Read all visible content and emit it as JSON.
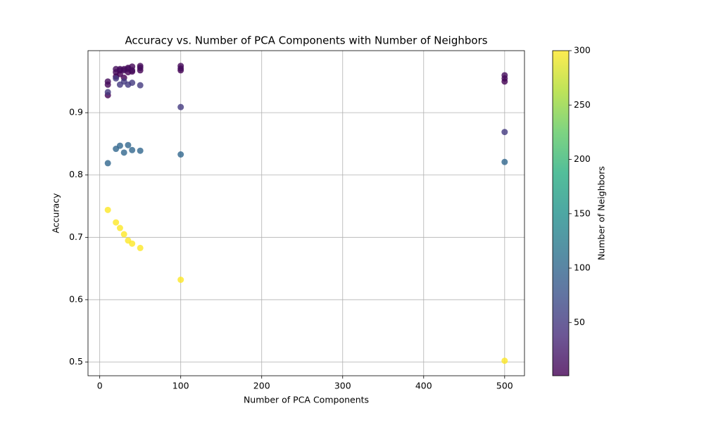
{
  "chart_data": {
    "type": "scatter",
    "title": "Accuracy vs. Number of PCA Components with Number of Neighbors",
    "xlabel": "Number of PCA Components",
    "ylabel": "Accuracy",
    "colorbar_label": "Number of Neighbors",
    "colormap": "viridis",
    "alpha": 0.8,
    "grid": true,
    "x": [
      10,
      20,
      25,
      30,
      35,
      40,
      50,
      100,
      500,
      10,
      20,
      25,
      30,
      35,
      40,
      50,
      100,
      500,
      10,
      20,
      25,
      30,
      35,
      40,
      50,
      100,
      500,
      10,
      20,
      25,
      30,
      35,
      40,
      50,
      100,
      500,
      10,
      20,
      25,
      30,
      35,
      40,
      50,
      100,
      500,
      10,
      20,
      25,
      30,
      35,
      40,
      50,
      100,
      500
    ],
    "y": [
      0.928,
      0.958,
      0.962,
      0.956,
      0.965,
      0.966,
      0.968,
      0.968,
      0.95,
      0.945,
      0.965,
      0.968,
      0.97,
      0.972,
      0.974,
      0.975,
      0.975,
      0.955,
      0.95,
      0.97,
      0.97,
      0.968,
      0.97,
      0.968,
      0.972,
      0.971,
      0.96,
      0.933,
      0.955,
      0.945,
      0.95,
      0.945,
      0.948,
      0.944,
      0.909,
      0.869,
      0.819,
      0.842,
      0.847,
      0.836,
      0.848,
      0.84,
      0.839,
      0.833,
      0.821,
      0.744,
      0.724,
      0.715,
      0.705,
      0.695,
      0.69,
      0.683,
      0.632,
      0.502
    ],
    "c": [
      1,
      1,
      1,
      1,
      1,
      1,
      1,
      1,
      1,
      5,
      5,
      5,
      5,
      5,
      5,
      5,
      5,
      5,
      10,
      10,
      10,
      10,
      10,
      10,
      10,
      10,
      10,
      50,
      50,
      50,
      50,
      50,
      50,
      50,
      50,
      50,
      100,
      100,
      100,
      100,
      100,
      100,
      100,
      100,
      100,
      300,
      300,
      300,
      300,
      300,
      300,
      300,
      300,
      300
    ],
    "xlim": [
      -14.5,
      524.5
    ],
    "xticks": [
      0,
      100,
      200,
      300,
      400,
      500
    ],
    "ylim": [
      0.478,
      0.9995
    ],
    "yticks": [
      0.5,
      0.6,
      0.7,
      0.8,
      0.9
    ],
    "clim": [
      1,
      300
    ],
    "cticks": [
      50,
      100,
      150,
      200,
      250,
      300
    ]
  }
}
